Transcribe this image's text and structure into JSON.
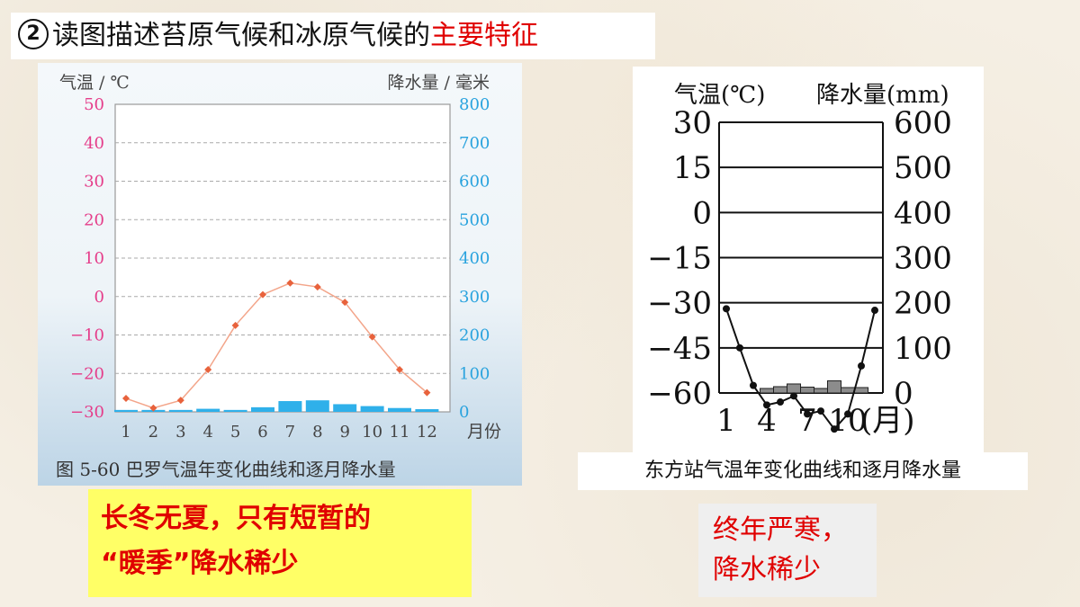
{
  "title": {
    "number": "2",
    "text": "读图描述苔原气候和冰原气候的",
    "highlight": "主要特征"
  },
  "chart_data": [
    {
      "type": "line",
      "caption": "图 5-60   巴罗气温年变化曲线和逐月降水量",
      "ylabel": "气温 / ℃",
      "y2label": "降水量 / 毫米",
      "xlabel": "月份",
      "x": [
        1,
        2,
        3,
        4,
        5,
        6,
        7,
        8,
        9,
        10,
        11,
        12
      ],
      "ylim": [
        -30,
        50
      ],
      "y2lim": [
        0,
        800
      ],
      "yticks": [
        50,
        40,
        30,
        20,
        10,
        0,
        -10,
        -20,
        -30
      ],
      "y2ticks": [
        800,
        700,
        600,
        500,
        400,
        300,
        200,
        100,
        0
      ],
      "temperature": [
        -26.5,
        -29,
        -27,
        -19,
        -7.5,
        0.5,
        3.5,
        2.5,
        -1.5,
        -10.5,
        -19,
        -25
      ],
      "precipitation": [
        5,
        5,
        5,
        8,
        5,
        12,
        28,
        30,
        20,
        15,
        10,
        7
      ],
      "grid": true,
      "colors": {
        "temp_line": "#f3a58a",
        "temp_marker": "#e8623c",
        "bars": "#2fb0ea",
        "axis_left": "#e53d8a",
        "axis_right": "#2aa3de"
      }
    },
    {
      "type": "line",
      "caption": "东方站气温年变化曲线和逐月降水量",
      "ylabel": "气温(℃)",
      "y2label": "降水量(mm)",
      "xlabel": "(月)",
      "xticks": [
        "1",
        "4",
        "7",
        "10"
      ],
      "x": [
        1,
        2,
        3,
        4,
        5,
        6,
        7,
        8,
        9,
        10,
        11,
        12
      ],
      "ylim": [
        -60,
        30
      ],
      "y2lim": [
        0,
        600
      ],
      "yticks": [
        "30",
        "15",
        "0",
        "−15",
        "−30",
        "−45",
        "−60"
      ],
      "y2ticks": [
        "600",
        "500",
        "400",
        "300",
        "200",
        "100",
        "0"
      ],
      "temperature": [
        -32,
        -45,
        -57.5,
        -64,
        -63,
        -61,
        -67,
        -66,
        -72,
        -67,
        -51,
        -32.5
      ],
      "precipitation": [
        0,
        0,
        0,
        10,
        14,
        20,
        13,
        10,
        27,
        12,
        12,
        0
      ],
      "grid": true,
      "colors": {
        "line": "#111111",
        "bars": "#8c8c8c"
      }
    }
  ],
  "answers": {
    "tundra": {
      "line1": "长冬无夏，只有短暂的",
      "line2": "“暖季”降水稀少"
    },
    "ice": {
      "line1": "终年严寒，",
      "line2": "降水稀少"
    }
  }
}
